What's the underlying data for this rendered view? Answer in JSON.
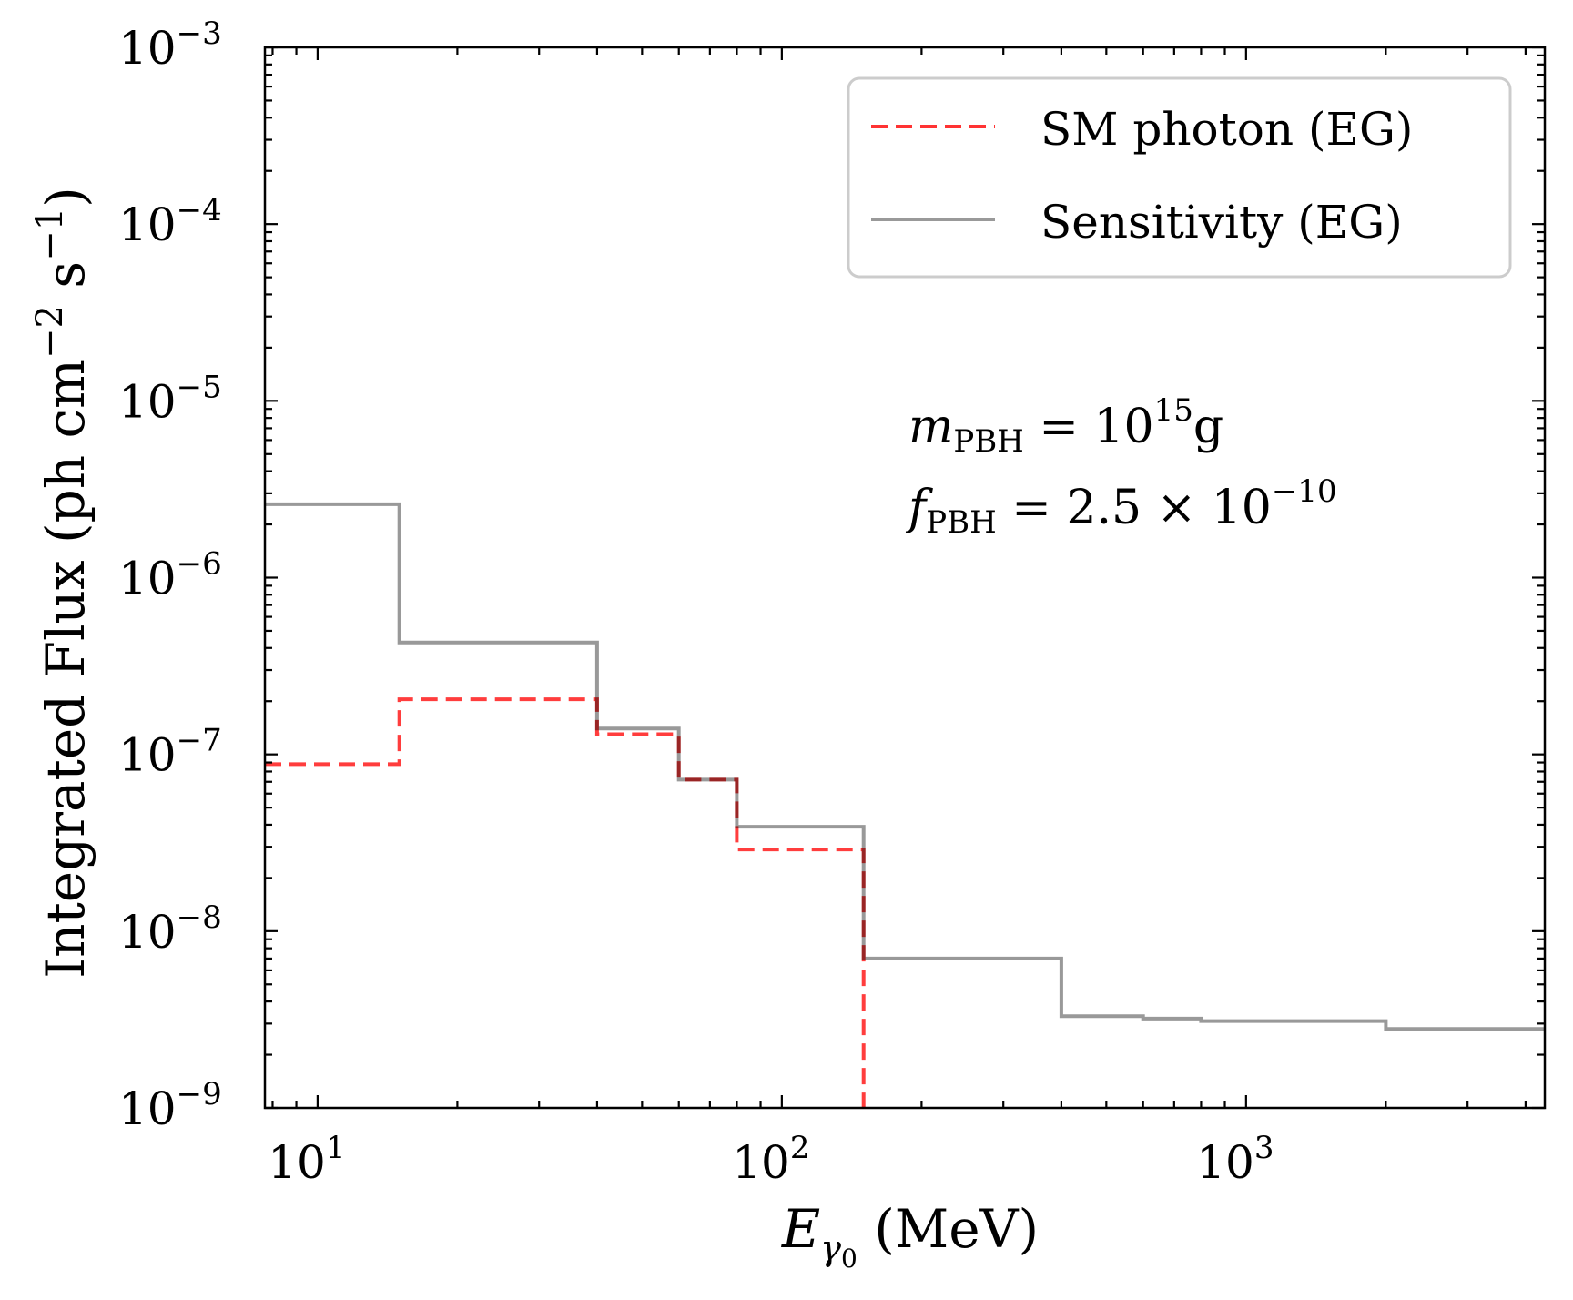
{
  "chart_data": {
    "type": "line",
    "step": "post",
    "xlabel": {
      "base": "E",
      "sub": "γ",
      "subsub": "0",
      "unit": " (MeV)"
    },
    "ylabel": {
      "text": "Integrated Flux (ph cm",
      "sup1": "−2",
      "mid": " s",
      "sup2": "−1",
      "end": ")"
    },
    "x_scale": "log",
    "y_scale": "log",
    "xlim": [
      7.7,
      4400
    ],
    "ylim": [
      1e-09,
      0.001
    ],
    "grid": false,
    "legend_position": "top-right",
    "x_ticks": [
      {
        "base": "10",
        "exp": "1",
        "value": 10
      },
      {
        "base": "10",
        "exp": "2",
        "value": 100
      },
      {
        "base": "10",
        "exp": "3",
        "value": 1000
      }
    ],
    "y_ticks": [
      {
        "base": "10",
        "exp": "−3",
        "value": 0.001
      },
      {
        "base": "10",
        "exp": "−4",
        "value": 0.0001
      },
      {
        "base": "10",
        "exp": "−5",
        "value": 1e-05
      },
      {
        "base": "10",
        "exp": "−6",
        "value": 1e-06
      },
      {
        "base": "10",
        "exp": "−7",
        "value": 1e-07
      },
      {
        "base": "10",
        "exp": "−8",
        "value": 1e-08
      },
      {
        "base": "10",
        "exp": "−9",
        "value": 1e-09
      }
    ],
    "series": [
      {
        "name": "Sensitivity (EG)",
        "style": "solid",
        "color": "#999999",
        "x": [
          7.7,
          15,
          40,
          60,
          80,
          150,
          400,
          600,
          800,
          2000,
          4400
        ],
        "y": [
          2.6e-06,
          4.3e-07,
          1.4e-07,
          7.2e-08,
          3.9e-08,
          7e-09,
          3.3e-09,
          3.2e-09,
          3.1e-09,
          2.8e-09,
          2.8e-09
        ]
      },
      {
        "name": "SM photon (EG)",
        "style": "dashed",
        "color": "#ff3333",
        "x": [
          7.7,
          15,
          40,
          60,
          80,
          150,
          150
        ],
        "y": [
          8.8e-08,
          2.05e-07,
          1.3e-07,
          7.2e-08,
          2.9e-08,
          2.9e-08,
          1e-09
        ]
      }
    ],
    "annotations": [
      {
        "var": "m",
        "sub": "PBH",
        "eq": " = 10",
        "sup": "15",
        "tail": "g"
      },
      {
        "var": "f",
        "sub": "PBH",
        "eq": " = 2.5 × 10",
        "sup": "−10",
        "tail": ""
      }
    ]
  }
}
